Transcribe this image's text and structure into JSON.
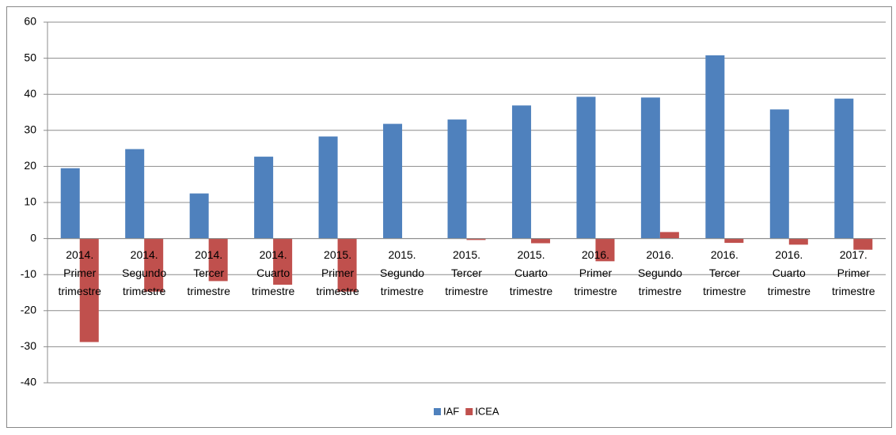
{
  "chart_data": {
    "type": "bar",
    "categories": [
      "2014. Primer trimestre",
      "2014. Segundo trimestre",
      "2014. Tercer trimestre",
      "2014. Cuarto trimestre",
      "2015. Primer trimestre",
      "2015. Segundo trimestre",
      "2015. Tercer trimestre",
      "2015. Cuarto trimestre",
      "2016. Primer trimestre",
      "2016. Segundo trimestre",
      "2016. Tercer trimestre",
      "2016. Cuarto trimestre",
      "2017. Primer trimestre"
    ],
    "series": [
      {
        "name": "IAF",
        "color": "#4f81bd",
        "values": [
          19.5,
          24.8,
          12.5,
          22.7,
          28.3,
          31.8,
          33.0,
          36.9,
          39.3,
          39.1,
          50.8,
          35.8,
          38.8
        ]
      },
      {
        "name": "ICEA",
        "color": "#c0504d",
        "values": [
          -28.7,
          -14.7,
          -11.8,
          -12.8,
          -14.7,
          0,
          -0.4,
          -1.3,
          -6.3,
          1.8,
          -1.2,
          -1.7,
          -3.1
        ]
      }
    ],
    "ylim": [
      -40,
      60
    ],
    "yticks": [
      -40,
      -30,
      -20,
      -10,
      0,
      10,
      20,
      30,
      40,
      50,
      60
    ],
    "grid": true,
    "legend": "bottom"
  }
}
